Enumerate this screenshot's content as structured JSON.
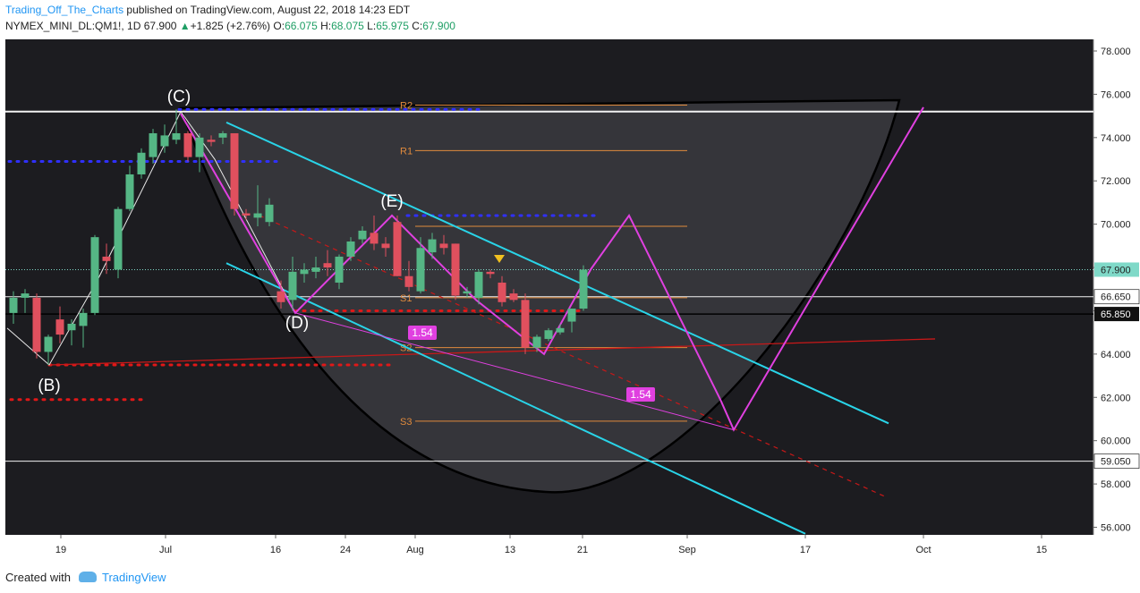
{
  "header": {
    "author": "Trading_Off_The_Charts",
    "published": "published on TradingView.com, August 22, 2018 14:23 EDT",
    "symbol": "NYMEX_MINI_DL:QM1!, 1D",
    "last": "67.900",
    "change_arrow": "▲",
    "change": "+1.825 (+2.76%)",
    "open_label": "O:",
    "open": "66.075",
    "high_label": "H:",
    "high": "68.075",
    "low_label": "L:",
    "low": "65.975",
    "close_label": "C:",
    "close": "67.900"
  },
  "footer": {
    "created_with": "Created with",
    "brand": "TradingView"
  },
  "colors": {
    "background": "#1c1c20",
    "up": "#55b685",
    "down": "#e0505e",
    "channel": "#29d4e8",
    "pattern": "#e040e0",
    "pivot": "#e08a3c",
    "trend": "#c81818",
    "bowl": "#3a3a40"
  },
  "chart_data": {
    "type": "candlestick",
    "ylim": [
      55.5,
      78.8
    ],
    "y_ticks": [
      "56.000",
      "58.000",
      "60.000",
      "62.000",
      "64.000",
      "66.000",
      "68.000",
      "70.000",
      "72.000",
      "74.000",
      "76.000",
      "78.000"
    ],
    "x_ticks": [
      "19",
      "Jul",
      "16",
      "24",
      "Aug",
      "13",
      "21",
      "Sep",
      "17",
      "Oct",
      "15"
    ],
    "price_labels": [
      {
        "text": "67.900",
        "value": 67.9,
        "kind": "last"
      },
      {
        "text": "66.650",
        "value": 66.65,
        "kind": "level"
      },
      {
        "text": "65.850",
        "value": 65.85,
        "kind": "dark"
      },
      {
        "text": "59.050",
        "value": 59.05,
        "kind": "level"
      }
    ],
    "candles": [
      {
        "o": 65.9,
        "h": 66.9,
        "l": 65.4,
        "c": 66.6
      },
      {
        "o": 66.6,
        "h": 67.0,
        "l": 65.9,
        "c": 66.8
      },
      {
        "o": 66.6,
        "h": 66.8,
        "l": 63.8,
        "c": 64.1
      },
      {
        "o": 64.1,
        "h": 64.9,
        "l": 63.5,
        "c": 64.8
      },
      {
        "o": 65.6,
        "h": 66.2,
        "l": 64.5,
        "c": 64.9
      },
      {
        "o": 65.1,
        "h": 65.6,
        "l": 64.4,
        "c": 65.4
      },
      {
        "o": 65.3,
        "h": 66.1,
        "l": 64.3,
        "c": 65.9
      },
      {
        "o": 65.9,
        "h": 69.5,
        "l": 65.8,
        "c": 69.4
      },
      {
        "o": 68.5,
        "h": 69.1,
        "l": 67.7,
        "c": 68.3
      },
      {
        "o": 67.9,
        "h": 70.8,
        "l": 67.5,
        "c": 70.7
      },
      {
        "o": 70.7,
        "h": 72.7,
        "l": 70.6,
        "c": 72.3
      },
      {
        "o": 72.3,
        "h": 73.5,
        "l": 72.1,
        "c": 73.3
      },
      {
        "o": 73.1,
        "h": 74.4,
        "l": 72.8,
        "c": 74.2
      },
      {
        "o": 73.6,
        "h": 74.6,
        "l": 73.3,
        "c": 74.1
      },
      {
        "o": 73.9,
        "h": 75.3,
        "l": 73.7,
        "c": 74.2
      },
      {
        "o": 74.2,
        "h": 74.3,
        "l": 72.9,
        "c": 73.1
      },
      {
        "o": 73.1,
        "h": 74.2,
        "l": 72.4,
        "c": 74.0
      },
      {
        "o": 73.9,
        "h": 74.1,
        "l": 73.6,
        "c": 73.8
      },
      {
        "o": 74.0,
        "h": 74.3,
        "l": 73.7,
        "c": 74.2
      },
      {
        "o": 74.2,
        "h": 74.2,
        "l": 70.4,
        "c": 70.7
      },
      {
        "o": 70.5,
        "h": 70.7,
        "l": 70.2,
        "c": 70.4
      },
      {
        "o": 70.3,
        "h": 71.8,
        "l": 69.9,
        "c": 70.5
      },
      {
        "o": 70.1,
        "h": 71.2,
        "l": 69.9,
        "c": 70.9
      },
      {
        "o": 66.9,
        "h": 67.4,
        "l": 66.1,
        "c": 66.4
      },
      {
        "o": 66.5,
        "h": 68.5,
        "l": 66.0,
        "c": 67.8
      },
      {
        "o": 67.7,
        "h": 68.2,
        "l": 67.3,
        "c": 67.9
      },
      {
        "o": 67.8,
        "h": 68.5,
        "l": 67.5,
        "c": 68.0
      },
      {
        "o": 68.2,
        "h": 68.8,
        "l": 67.6,
        "c": 68.0
      },
      {
        "o": 67.3,
        "h": 68.6,
        "l": 67.0,
        "c": 68.5
      },
      {
        "o": 68.5,
        "h": 69.4,
        "l": 68.3,
        "c": 69.2
      },
      {
        "o": 69.3,
        "h": 69.9,
        "l": 69.1,
        "c": 69.7
      },
      {
        "o": 69.6,
        "h": 70.4,
        "l": 68.8,
        "c": 69.1
      },
      {
        "o": 69.1,
        "h": 69.4,
        "l": 68.5,
        "c": 68.9
      },
      {
        "o": 70.1,
        "h": 70.4,
        "l": 67.6,
        "c": 67.6
      },
      {
        "o": 67.6,
        "h": 68.3,
        "l": 66.9,
        "c": 67.1
      },
      {
        "o": 66.9,
        "h": 69.4,
        "l": 66.8,
        "c": 68.9
      },
      {
        "o": 68.7,
        "h": 69.6,
        "l": 68.4,
        "c": 69.3
      },
      {
        "o": 69.1,
        "h": 69.5,
        "l": 68.6,
        "c": 68.9
      },
      {
        "o": 69.1,
        "h": 69.1,
        "l": 66.5,
        "c": 66.7
      },
      {
        "o": 66.8,
        "h": 67.1,
        "l": 66.6,
        "c": 66.9
      },
      {
        "o": 66.6,
        "h": 67.9,
        "l": 66.3,
        "c": 67.8
      },
      {
        "o": 67.8,
        "h": 67.9,
        "l": 67.5,
        "c": 67.7
      },
      {
        "o": 67.3,
        "h": 67.6,
        "l": 66.2,
        "c": 66.4
      },
      {
        "o": 66.8,
        "h": 67.0,
        "l": 66.4,
        "c": 66.5
      },
      {
        "o": 66.5,
        "h": 66.8,
        "l": 64.0,
        "c": 64.3
      },
      {
        "o": 64.3,
        "h": 64.9,
        "l": 64.1,
        "c": 64.8
      },
      {
        "o": 64.7,
        "h": 65.2,
        "l": 64.6,
        "c": 65.1
      },
      {
        "o": 65.0,
        "h": 65.4,
        "l": 64.9,
        "c": 65.2
      },
      {
        "o": 65.5,
        "h": 66.1,
        "l": 65.0,
        "c": 66.1
      },
      {
        "o": 66.1,
        "h": 68.1,
        "l": 66.0,
        "c": 67.9
      }
    ],
    "pattern_labels": [
      "(B)",
      "(C)",
      "(D)",
      "(E)"
    ],
    "pattern_points": [
      [
        63.5,
        0
      ],
      [
        75.3,
        0
      ],
      [
        65.9,
        0
      ],
      [
        70.4,
        0
      ]
    ],
    "zigzag": [
      75.1,
      65.9,
      70.4,
      66.5,
      64.0,
      67.9,
      70.4,
      61.9,
      60.5,
      75.4
    ],
    "ratio_labels": [
      "1.54",
      "1.54"
    ],
    "pivots": [
      {
        "name": "R2",
        "value": 75.5
      },
      {
        "name": "R1",
        "value": 73.4
      },
      {
        "name": "S1",
        "value": 66.6
      },
      {
        "name": "S2",
        "value": 64.3
      },
      {
        "name": "S3",
        "value": 60.9
      }
    ],
    "horizontal_levels": [
      75.2,
      67.9,
      66.65,
      65.85,
      59.05
    ]
  }
}
